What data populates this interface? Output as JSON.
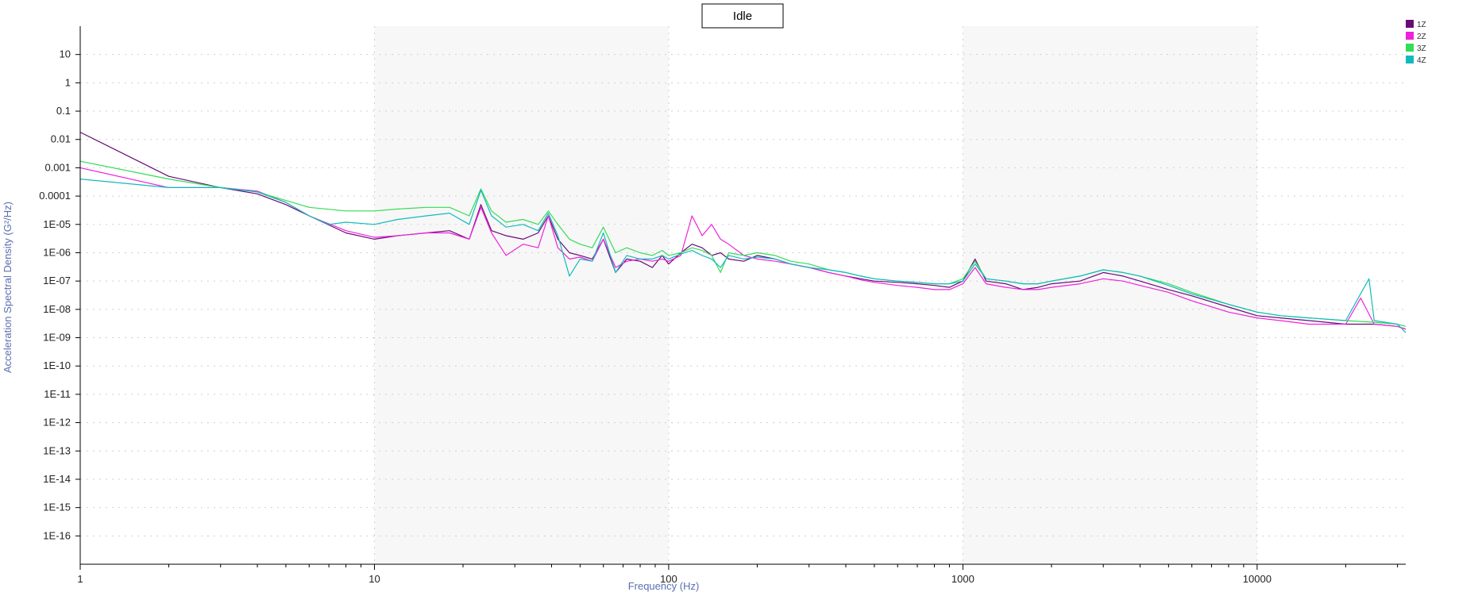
{
  "chart_data": {
    "type": "line",
    "title": "Idle",
    "xlabel": "Frequency (Hz)",
    "ylabel": "Acceleration Spectral Density (G²/Hz)",
    "x_scale": "log",
    "y_scale": "log",
    "xlim": [
      1,
      32000
    ],
    "ylim": [
      1e-17,
      100
    ],
    "x_ticks": [
      {
        "value": 1,
        "label": "1"
      },
      {
        "value": 10,
        "label": "10"
      },
      {
        "value": 100,
        "label": "100"
      },
      {
        "value": 1000,
        "label": "1000"
      },
      {
        "value": 10000,
        "label": "10000"
      }
    ],
    "y_ticks": [
      {
        "value": 10,
        "label": "10"
      },
      {
        "value": 1,
        "label": "1"
      },
      {
        "value": 0.1,
        "label": "0.1"
      },
      {
        "value": 0.01,
        "label": "0.01"
      },
      {
        "value": 0.001,
        "label": "0.001"
      },
      {
        "value": 0.0001,
        "label": "0.0001"
      },
      {
        "value": 1e-05,
        "label": "1E-05"
      },
      {
        "value": 1e-06,
        "label": "1E-06"
      },
      {
        "value": 1e-07,
        "label": "1E-07"
      },
      {
        "value": 1e-08,
        "label": "1E-08"
      },
      {
        "value": 1e-09,
        "label": "1E-09"
      },
      {
        "value": 1e-10,
        "label": "1E-10"
      },
      {
        "value": 1e-11,
        "label": "1E-11"
      },
      {
        "value": 1e-12,
        "label": "1E-12"
      },
      {
        "value": 1e-13,
        "label": "1E-13"
      },
      {
        "value": 1e-14,
        "label": "1E-14"
      },
      {
        "value": 1e-15,
        "label": "1E-15"
      },
      {
        "value": 1e-16,
        "label": "1E-16"
      }
    ],
    "grid": true,
    "shaded_bands": [
      [
        10,
        100
      ],
      [
        1000,
        10000
      ]
    ],
    "legend": "top-right",
    "series": [
      {
        "name": "1Z",
        "color": "#6a0a78",
        "x": [
          1,
          2,
          3,
          4,
          5,
          6,
          8,
          10,
          12,
          15,
          18,
          21,
          23,
          25,
          28,
          32,
          36,
          39,
          42,
          46,
          50,
          55,
          60,
          66,
          72,
          80,
          88,
          95,
          100,
          110,
          120,
          130,
          140,
          150,
          160,
          180,
          200,
          230,
          260,
          300,
          350,
          400,
          450,
          500,
          600,
          700,
          800,
          900,
          1000,
          1100,
          1200,
          1400,
          1600,
          1800,
          2000,
          2500,
          3000,
          3500,
          4000,
          5000,
          6000,
          8000,
          10000,
          12000,
          15000,
          20000,
          25000,
          30000,
          32000
        ],
        "y": [
          0.018,
          0.0005,
          0.0002,
          0.00012,
          5e-05,
          2e-05,
          5e-06,
          3e-06,
          4e-06,
          5e-06,
          6e-06,
          3e-06,
          5e-05,
          6e-06,
          4e-06,
          3e-06,
          5e-06,
          2e-05,
          3e-06,
          1e-06,
          8e-07,
          6e-07,
          3e-06,
          2e-07,
          6e-07,
          5e-07,
          3e-07,
          8e-07,
          4e-07,
          1e-06,
          2e-06,
          1.5e-06,
          8e-07,
          1e-06,
          6e-07,
          5e-07,
          8e-07,
          6e-07,
          4e-07,
          3e-07,
          2e-07,
          1.5e-07,
          1.2e-07,
          1e-07,
          9e-08,
          8e-08,
          7e-08,
          6e-08,
          1e-07,
          6e-07,
          1e-07,
          8e-08,
          5e-08,
          6e-08,
          8e-08,
          1e-07,
          2e-07,
          1.5e-07,
          1e-07,
          5e-08,
          3e-08,
          1.2e-08,
          6e-09,
          5e-09,
          4e-09,
          3e-09,
          3e-09,
          2.5e-09,
          2e-09
        ]
      },
      {
        "name": "2Z",
        "color": "#ee22dd",
        "x": [
          1,
          2,
          3,
          4,
          5,
          6,
          8,
          10,
          12,
          15,
          18,
          21,
          23,
          25,
          28,
          32,
          36,
          39,
          42,
          46,
          50,
          55,
          60,
          66,
          72,
          80,
          88,
          95,
          100,
          110,
          120,
          130,
          140,
          150,
          160,
          180,
          200,
          230,
          260,
          300,
          350,
          400,
          450,
          500,
          600,
          700,
          800,
          900,
          1000,
          1100,
          1200,
          1400,
          1600,
          1800,
          2000,
          2500,
          3000,
          3500,
          4000,
          5000,
          6000,
          8000,
          10000,
          12000,
          15000,
          20000,
          22500,
          25000,
          30000,
          32000
        ],
        "y": [
          0.001,
          0.0002,
          0.0002,
          0.00015,
          6e-05,
          2e-05,
          6e-06,
          3.5e-06,
          4e-06,
          5e-06,
          5e-06,
          3e-06,
          4e-05,
          5e-06,
          8e-07,
          2e-06,
          1.5e-06,
          2e-05,
          1.5e-06,
          6e-07,
          7e-07,
          5e-07,
          3e-06,
          3e-07,
          5e-07,
          6e-07,
          5e-07,
          6e-07,
          5e-07,
          8e-07,
          2e-05,
          4e-06,
          1e-05,
          3e-06,
          2e-06,
          8e-07,
          6e-07,
          5e-07,
          4e-07,
          3e-07,
          2e-07,
          1.5e-07,
          1.1e-07,
          9e-08,
          7e-08,
          6e-08,
          5e-08,
          5e-08,
          8e-08,
          3e-07,
          8e-08,
          6e-08,
          5e-08,
          5e-08,
          6e-08,
          8e-08,
          1.2e-07,
          1e-07,
          7e-08,
          4e-08,
          2e-08,
          8e-09,
          5e-09,
          4e-09,
          3e-09,
          3e-09,
          2.5e-08,
          3e-09,
          2.5e-09,
          2e-09
        ]
      },
      {
        "name": "3Z",
        "color": "#33dd55",
        "x": [
          1,
          2,
          3,
          4,
          5,
          6,
          8,
          10,
          12,
          15,
          18,
          21,
          23,
          25,
          28,
          32,
          36,
          39,
          42,
          46,
          50,
          55,
          60,
          66,
          72,
          80,
          88,
          95,
          100,
          110,
          120,
          130,
          140,
          150,
          160,
          180,
          200,
          230,
          260,
          300,
          350,
          400,
          450,
          500,
          600,
          700,
          800,
          900,
          1000,
          1100,
          1200,
          1400,
          1600,
          1800,
          2000,
          2500,
          3000,
          3500,
          4000,
          5000,
          6000,
          8000,
          10000,
          12000,
          15000,
          20000,
          25000,
          30000,
          32000
        ],
        "y": [
          0.0017,
          0.0004,
          0.0002,
          0.00014,
          7e-05,
          4e-05,
          3e-05,
          3e-05,
          3.5e-05,
          4e-05,
          4e-05,
          2e-05,
          0.00018,
          3e-05,
          1.2e-05,
          1.5e-05,
          1e-05,
          3e-05,
          1e-05,
          3e-06,
          2e-06,
          1.5e-06,
          8e-06,
          1e-06,
          1.5e-06,
          1e-06,
          8e-07,
          1.2e-06,
          8e-07,
          1e-06,
          1.5e-06,
          1.2e-06,
          8e-07,
          2e-07,
          1e-06,
          8e-07,
          1e-06,
          8e-07,
          5e-07,
          4e-07,
          2.5e-07,
          2e-07,
          1.5e-07,
          1.2e-07,
          1e-07,
          9e-08,
          8e-08,
          8e-08,
          1.2e-07,
          5e-07,
          1.2e-07,
          1e-07,
          8e-08,
          8e-08,
          1e-07,
          1.5e-07,
          2.5e-07,
          2e-07,
          1.5e-07,
          8e-08,
          4e-08,
          1.5e-08,
          8e-09,
          6e-09,
          5e-09,
          4e-09,
          3.5e-09,
          3e-09,
          2.5e-09
        ]
      },
      {
        "name": "4Z",
        "color": "#11bbbb",
        "x": [
          1,
          2,
          3,
          4,
          5,
          6,
          7,
          8,
          10,
          12,
          15,
          18,
          21,
          23,
          25,
          28,
          32,
          36,
          39,
          42,
          46,
          50,
          55,
          60,
          66,
          72,
          80,
          88,
          95,
          100,
          110,
          120,
          130,
          140,
          150,
          160,
          180,
          200,
          230,
          260,
          300,
          350,
          400,
          450,
          500,
          600,
          700,
          800,
          900,
          1000,
          1100,
          1200,
          1400,
          1600,
          1800,
          2000,
          2500,
          3000,
          3500,
          4000,
          5000,
          6000,
          8000,
          10000,
          12000,
          15000,
          20000,
          24000,
          25000,
          30000,
          32000
        ],
        "y": [
          0.0004,
          0.0002,
          0.0002,
          0.00014,
          6e-05,
          2e-05,
          1e-05,
          1.2e-05,
          1e-05,
          1.5e-05,
          2e-05,
          2.5e-05,
          1e-05,
          0.00016,
          2e-05,
          8e-06,
          1e-05,
          6e-06,
          2.5e-05,
          4e-06,
          1.5e-07,
          6e-07,
          5e-07,
          5e-06,
          2e-07,
          8e-07,
          6e-07,
          6e-07,
          8e-07,
          6e-07,
          9e-07,
          1.2e-06,
          8e-07,
          6e-07,
          3e-07,
          8e-07,
          6e-07,
          7e-07,
          6e-07,
          4e-07,
          3e-07,
          2.5e-07,
          2e-07,
          1.5e-07,
          1.2e-07,
          1e-07,
          9e-08,
          8e-08,
          8e-08,
          1e-07,
          4e-07,
          1.2e-07,
          1e-07,
          8e-08,
          8e-08,
          1e-07,
          1.5e-07,
          2.5e-07,
          2e-07,
          1.5e-07,
          7e-08,
          3.5e-08,
          1.5e-08,
          8e-09,
          6e-09,
          5e-09,
          4e-09,
          1.2e-07,
          4e-09,
          3e-09,
          1.5e-09
        ]
      }
    ]
  }
}
